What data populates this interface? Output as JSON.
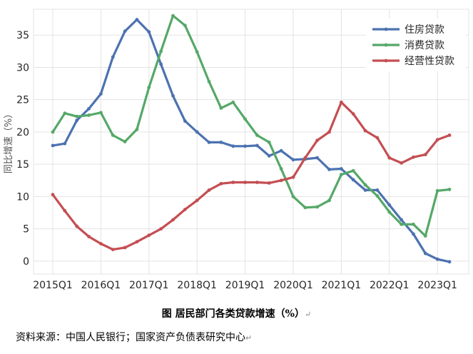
{
  "caption": {
    "text": "图 居民部门各类贷款增速（%）",
    "mark": "↵"
  },
  "source": {
    "text": "资料来源：中国人民银行；国家资产负债表研究中心",
    "mark": "↵"
  },
  "chart_data": {
    "type": "line",
    "ylabel": "同比增速（%）",
    "ylim": [
      -2,
      39
    ],
    "yticks": [
      0,
      5,
      10,
      15,
      20,
      25,
      30,
      35
    ],
    "xticks": [
      {
        "label": "2015Q1",
        "index": 0
      },
      {
        "label": "2016Q1",
        "index": 4
      },
      {
        "label": "2017Q1",
        "index": 8
      },
      {
        "label": "2018Q1",
        "index": 12
      },
      {
        "label": "2019Q1",
        "index": 16
      },
      {
        "label": "2020Q1",
        "index": 20
      },
      {
        "label": "2021Q1",
        "index": 24
      },
      {
        "label": "2022Q1",
        "index": 28
      },
      {
        "label": "2023Q1",
        "index": 32
      }
    ],
    "x": [
      "2015Q1",
      "2015Q2",
      "2015Q3",
      "2015Q4",
      "2016Q1",
      "2016Q2",
      "2016Q3",
      "2016Q4",
      "2017Q1",
      "2017Q2",
      "2017Q3",
      "2017Q4",
      "2018Q1",
      "2018Q2",
      "2018Q3",
      "2018Q4",
      "2019Q1",
      "2019Q2",
      "2019Q3",
      "2019Q4",
      "2020Q1",
      "2020Q2",
      "2020Q3",
      "2020Q4",
      "2021Q1",
      "2021Q2",
      "2021Q3",
      "2021Q4",
      "2022Q1",
      "2022Q2",
      "2022Q3",
      "2022Q4",
      "2023Q1",
      "2023Q2"
    ],
    "grid": true,
    "legend_position": "top-right",
    "series": [
      {
        "name": "住房贷款",
        "color": "#4C72B0",
        "values": [
          17.9,
          18.2,
          21.8,
          23.6,
          25.9,
          31.6,
          35.6,
          37.4,
          35.5,
          30.5,
          25.6,
          21.7,
          20.0,
          18.4,
          18.4,
          17.8,
          17.8,
          17.9,
          16.3,
          17.1,
          15.7,
          15.8,
          16.0,
          14.2,
          14.3,
          12.6,
          11.0,
          11.0,
          8.7,
          6.4,
          4.2,
          1.2,
          0.3,
          -0.1
        ]
      },
      {
        "name": "消费贷款",
        "color": "#55A868",
        "values": [
          20.0,
          22.9,
          22.4,
          22.6,
          23.0,
          19.5,
          18.5,
          20.4,
          26.9,
          32.5,
          38.0,
          36.5,
          32.4,
          27.8,
          23.7,
          24.6,
          22.0,
          19.5,
          18.4,
          14.3,
          10.0,
          8.3,
          8.4,
          9.4,
          13.4,
          14.0,
          11.8,
          10.1,
          7.6,
          5.7,
          5.7,
          3.9,
          10.9,
          11.1
        ]
      },
      {
        "name": "经营性贷款",
        "color": "#C44E52",
        "values": [
          10.3,
          7.8,
          5.4,
          3.8,
          2.7,
          1.8,
          2.1,
          3.0,
          4.0,
          5.0,
          6.4,
          8.0,
          9.4,
          11.0,
          12.0,
          12.2,
          12.2,
          12.2,
          12.1,
          12.5,
          13.0,
          16.0,
          18.7,
          20.0,
          24.6,
          22.8,
          20.2,
          19.1,
          16.0,
          15.2,
          16.1,
          16.5,
          18.8,
          19.5
        ]
      }
    ]
  }
}
